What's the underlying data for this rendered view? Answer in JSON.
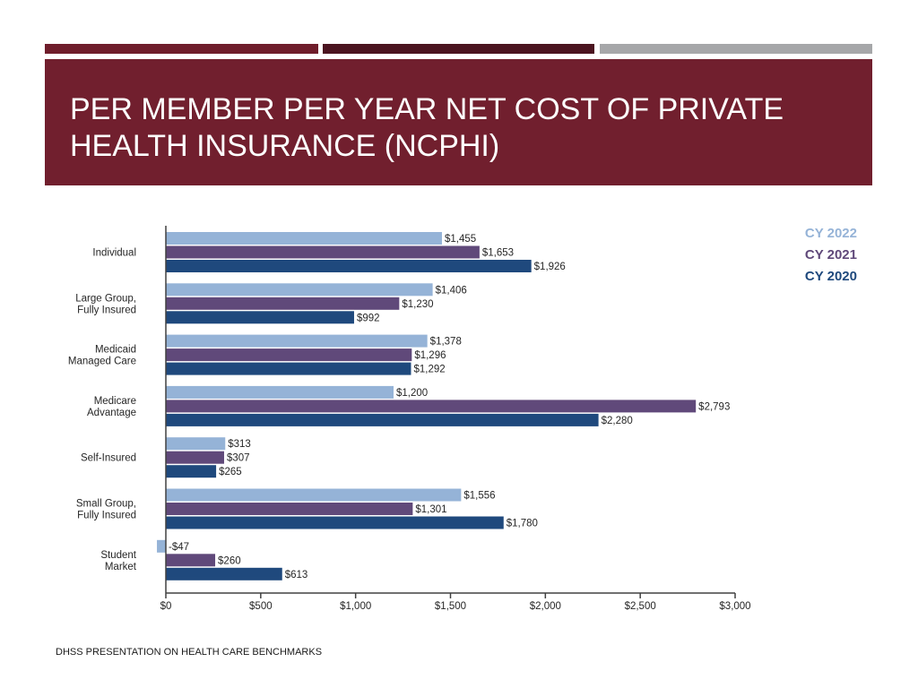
{
  "slide": {
    "title": "PER MEMBER PER YEAR NET COST OF PRIVATE HEALTH INSURANCE (NCPHI)",
    "footer": "DHSS PRESENTATION ON HEALTH CARE BENCHMARKS",
    "colors": {
      "topbar_1": "#6f1d2b",
      "topbar_2": "#4b1420",
      "topbar_3": "#a6a7a9",
      "banner": "#711f2e"
    }
  },
  "chart_data": {
    "type": "bar",
    "orientation": "horizontal",
    "categories": [
      [
        "Individual"
      ],
      [
        "Large Group,",
        "Fully Insured"
      ],
      [
        "Medicaid",
        "Managed Care"
      ],
      [
        "Medicare",
        "Advantage"
      ],
      [
        "Self-Insured"
      ],
      [
        "Small Group,",
        "Fully Insured"
      ],
      [
        "Student",
        "Market"
      ]
    ],
    "series": [
      {
        "name": "CY 2022",
        "color": "#95b3d7",
        "values": [
          1455,
          1406,
          1378,
          1200,
          313,
          1556,
          -47
        ],
        "labels": [
          "$1,455",
          "$1,406",
          "$1,378",
          "$1,200",
          "$313",
          "$1,556",
          "-$47"
        ]
      },
      {
        "name": "CY 2021",
        "color": "#60497a",
        "values": [
          1653,
          1230,
          1296,
          2793,
          307,
          1301,
          260
        ],
        "labels": [
          "$1,653",
          "$1,230",
          "$1,296",
          "$2,793",
          "$307",
          "$1,301",
          "$260"
        ]
      },
      {
        "name": "CY 2020",
        "color": "#1f497d",
        "values": [
          1926,
          992,
          1292,
          2280,
          265,
          1780,
          613
        ],
        "labels": [
          "$1,926",
          "$992",
          "$1,292",
          "$2,280",
          "$265",
          "$1,780",
          "$613"
        ]
      }
    ],
    "xlim": [
      0,
      3000
    ],
    "x_ticks": [
      0,
      500,
      1000,
      1500,
      2000,
      2500,
      3000
    ],
    "x_tick_labels": [
      "$0",
      "$500",
      "$1,000",
      "$1,500",
      "$2,000",
      "$2,500",
      "$3,000"
    ],
    "grid": false,
    "legend_position": "top-right"
  }
}
